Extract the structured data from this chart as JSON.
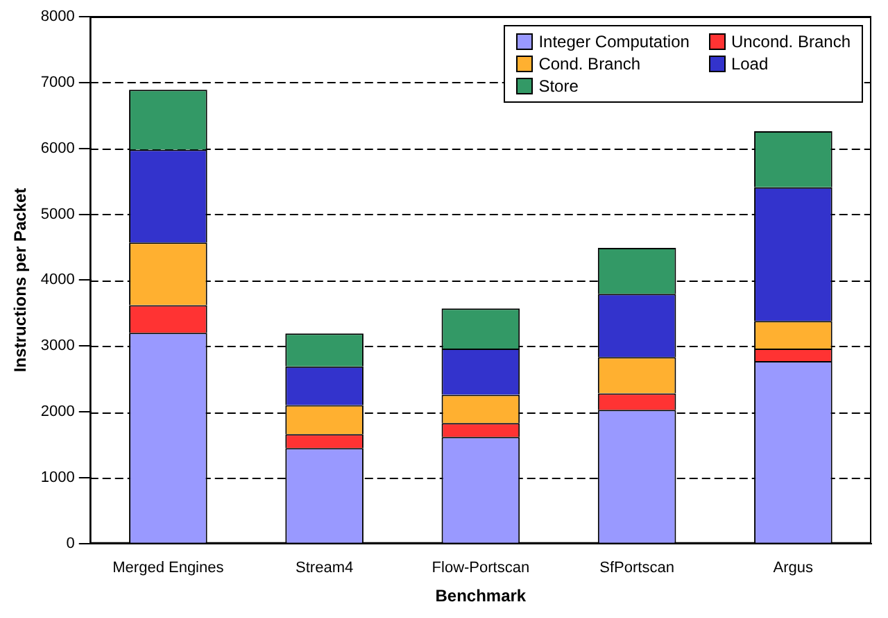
{
  "chart_data": {
    "type": "bar",
    "stacked": true,
    "xlabel": "Benchmark",
    "ylabel": "Instructions per Packet",
    "categories": [
      "Merged Engines",
      "Stream4",
      "Flow-Portscan",
      "SfPortscan",
      "Argus"
    ],
    "series": [
      {
        "name": "Integer Computation",
        "color": "#9999ff",
        "values": [
          3200,
          1450,
          1620,
          2030,
          2770
        ]
      },
      {
        "name": "Uncond. Branch",
        "color": "#ff3333",
        "values": [
          420,
          210,
          210,
          250,
          190
        ]
      },
      {
        "name": "Cond. Branch",
        "color": "#ffb030",
        "values": [
          950,
          440,
          430,
          550,
          420
        ]
      },
      {
        "name": "Load",
        "color": "#3333cc",
        "values": [
          1410,
          590,
          700,
          960,
          2030
        ]
      },
      {
        "name": "Store",
        "color": "#339966",
        "values": [
          910,
          500,
          610,
          700,
          850
        ]
      }
    ],
    "ylim": [
      0,
      8000
    ],
    "yticks": [
      0,
      1000,
      2000,
      3000,
      4000,
      5000,
      6000,
      7000,
      8000
    ],
    "grid": "y",
    "legend": "top right"
  }
}
